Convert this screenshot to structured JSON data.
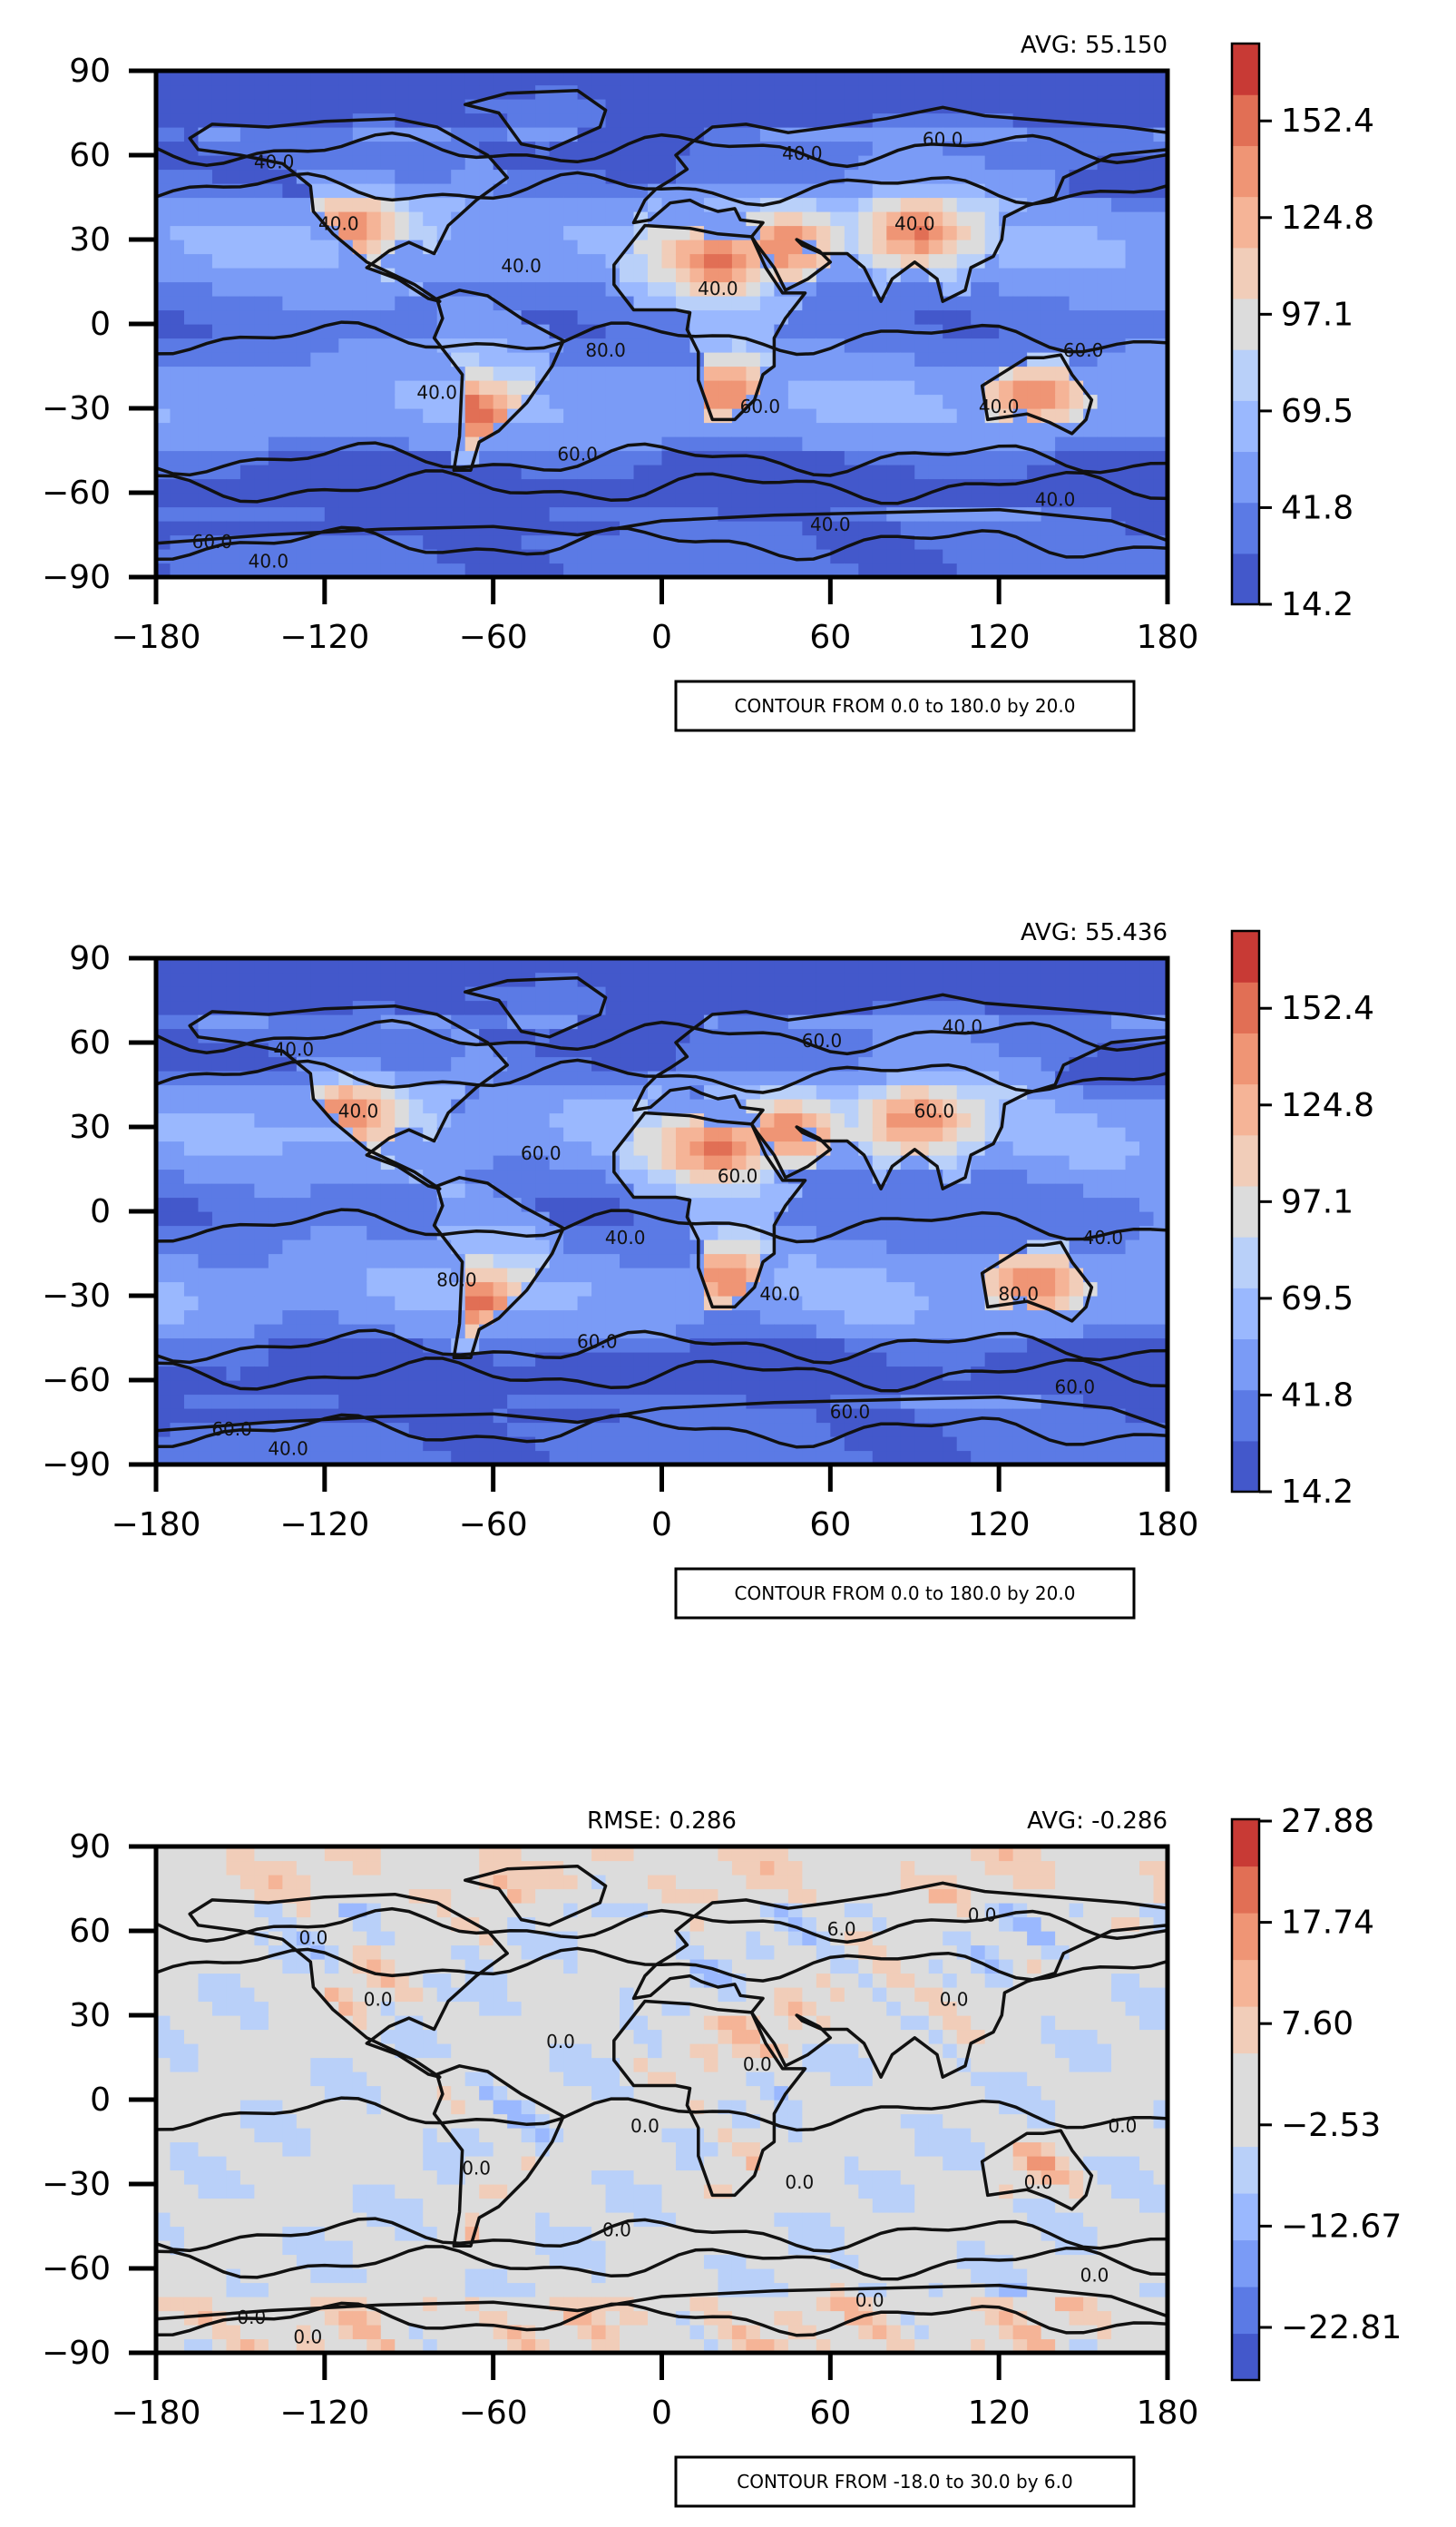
{
  "panels": [
    {
      "avg_label": "AVG: 55.150",
      "rmse_label": "",
      "contour_note": "CONTOUR FROM 0.0 to 180.0 by 20.0",
      "colorbar_ticks": [
        "14.2",
        "41.8",
        "69.5",
        "97.1",
        "124.8",
        "152.4"
      ],
      "contour_labels": [
        "40.0",
        "40.0",
        "40.0",
        "60.0",
        "60.0",
        "40.0",
        "40.0",
        "60.0",
        "40.0",
        "40.0",
        "40.0",
        "40.0",
        "80.0",
        "60.0",
        "60.0",
        "40.0",
        "40.0"
      ]
    },
    {
      "avg_label": "AVG: 55.436",
      "rmse_label": "",
      "contour_note": "CONTOUR FROM 0.0 to 180.0 by 20.0",
      "colorbar_ticks": [
        "14.2",
        "41.8",
        "69.5",
        "97.1",
        "124.8",
        "152.4"
      ],
      "contour_labels": [
        "40.0",
        "40.0",
        "80.0",
        "60.0",
        "60.0",
        "60.0",
        "60.0",
        "40.0",
        "80.0",
        "60.0",
        "60.0",
        "60.0",
        "40.0",
        "40.0",
        "40.0",
        "40.0",
        "60.0"
      ]
    },
    {
      "avg_label": "AVG: -0.286",
      "rmse_label": "RMSE: 0.286",
      "contour_note": "CONTOUR FROM -18.0 to 30.0 by 6.0",
      "colorbar_ticks": [
        "27.88",
        "17.74",
        "7.60",
        "−2.53",
        "−12.67",
        "−22.81"
      ],
      "contour_labels": [
        "0.0",
        "0.0",
        "0.0",
        "0.0",
        "0.0",
        "6.0",
        "0.0",
        "0.0",
        "0.0",
        "0.0",
        "0.0",
        "0.0",
        "0.0",
        "0.0",
        "0.0",
        "0.0",
        "0.0"
      ]
    }
  ],
  "chart_data": [
    {
      "type": "heatmap",
      "title": "",
      "avg": 55.15,
      "x_ticks": [
        "−180",
        "−120",
        "−60",
        "0",
        "60",
        "120",
        "180"
      ],
      "y_ticks": [
        "90",
        "60",
        "30",
        "0",
        "−30",
        "−60",
        "−90"
      ],
      "xlim": [
        -180,
        180
      ],
      "ylim": [
        -90,
        90
      ],
      "colorbar_range": [
        14.2,
        166.2
      ],
      "colorbar_levels": 11,
      "contour_min": 0.0,
      "contour_max": 180.0,
      "contour_interval": 20.0,
      "colormap": [
        "#4358cb",
        "#5b7ae5",
        "#7a9bf6",
        "#9ab8fe",
        "#b9d0f9",
        "#dcdcdc",
        "#f1cdb9",
        "#f5b497",
        "#ef9575",
        "#e16f55",
        "#c83a35"
      ]
    },
    {
      "type": "heatmap",
      "title": "",
      "avg": 55.436,
      "x_ticks": [
        "−180",
        "−120",
        "−60",
        "0",
        "60",
        "120",
        "180"
      ],
      "y_ticks": [
        "90",
        "60",
        "30",
        "0",
        "−30",
        "−60",
        "−90"
      ],
      "xlim": [
        -180,
        180
      ],
      "ylim": [
        -90,
        90
      ],
      "colorbar_range": [
        14.2,
        166.2
      ],
      "colorbar_levels": 11,
      "contour_min": 0.0,
      "contour_max": 180.0,
      "contour_interval": 20.0,
      "colormap": [
        "#4358cb",
        "#5b7ae5",
        "#7a9bf6",
        "#9ab8fe",
        "#b9d0f9",
        "#dcdcdc",
        "#f1cdb9",
        "#f5b497",
        "#ef9575",
        "#e16f55",
        "#c83a35"
      ]
    },
    {
      "type": "heatmap",
      "title": "",
      "avg": -0.286,
      "rmse": 0.286,
      "x_ticks": [
        "−180",
        "−120",
        "−60",
        "0",
        "60",
        "120",
        "180"
      ],
      "y_ticks": [
        "90",
        "60",
        "30",
        "0",
        "−30",
        "−60",
        "−90"
      ],
      "xlim": [
        -180,
        180
      ],
      "ylim": [
        -90,
        90
      ],
      "colorbar_range": [
        -27.88,
        32.95
      ],
      "colorbar_levels": 12,
      "contour_min": -18.0,
      "contour_max": 30.0,
      "contour_interval": 6.0,
      "colormap": [
        "#4358cb",
        "#5b7ae5",
        "#7a9bf6",
        "#9ab8fe",
        "#b9d0f9",
        "#dcdcdc",
        "#dcdcdc",
        "#f1cdb9",
        "#f5b497",
        "#ef9575",
        "#e16f55",
        "#c83a35"
      ]
    }
  ]
}
